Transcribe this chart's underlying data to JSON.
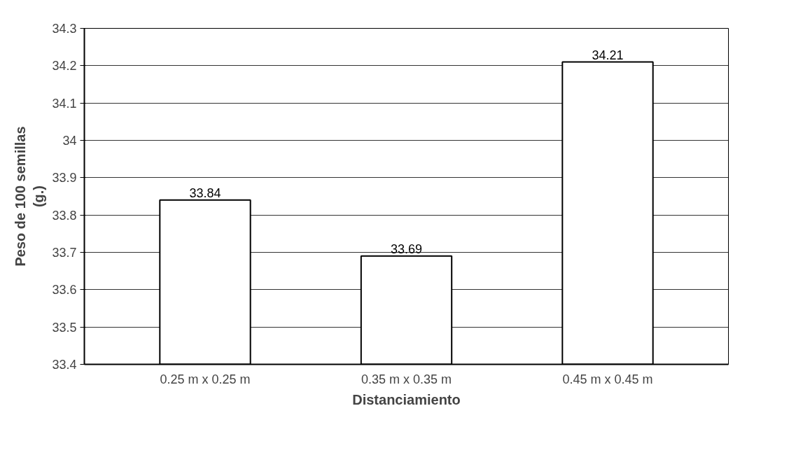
{
  "chart_data": {
    "type": "bar",
    "xlabel": "Distanciamiento",
    "ylabel": "Peso de 100 semillas\n(g.)",
    "categories": [
      "0.25 m x 0.25 m",
      "0.35 m x 0.35 m",
      "0.45 m x 0.45 m"
    ],
    "values": [
      33.84,
      33.69,
      34.21
    ],
    "color": "#ffffff",
    "ylim": [
      33.4,
      34.3
    ],
    "yticks": [
      33.4,
      33.5,
      33.6,
      33.7,
      33.8,
      33.9,
      34,
      34.1,
      34.2,
      34.3
    ],
    "grid": "y",
    "data_labels": true
  }
}
